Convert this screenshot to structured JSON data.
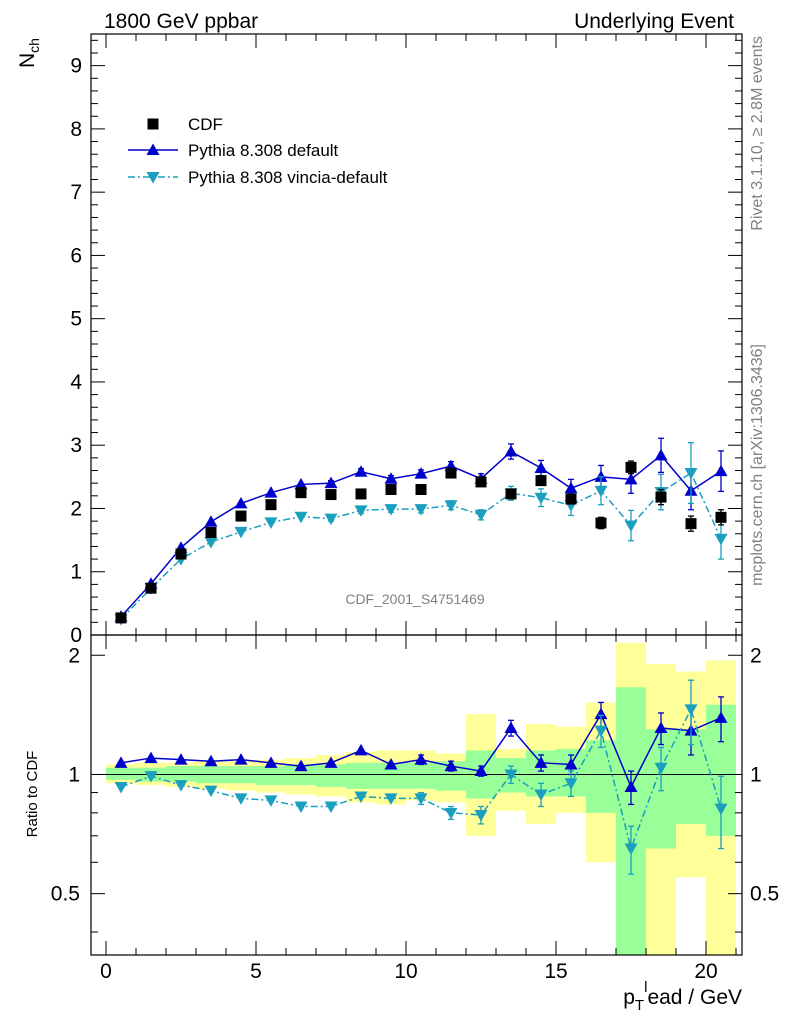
{
  "header": {
    "left": "1800 GeV ppbar",
    "right": "Underlying Event"
  },
  "side_text": {
    "rivet": "Rivet 3.1.10, ≥ 2.8M events",
    "mcplots": "mcplots.cern.ch [arXiv:1306.3436]"
  },
  "analysis_label": "CDF_2001_S4751469",
  "colors": {
    "cdf": "#000000",
    "default": "#0000cc",
    "vincia": "#1a9fbf",
    "band_outer": "#ffff99",
    "band_inner": "#99ff99"
  },
  "chart_data": [
    {
      "type": "scatter",
      "panel": "main",
      "ylabel_main": "N",
      "ylabel_sub": "ch",
      "xlim": [
        -0.5,
        21.2
      ],
      "ylim": [
        0,
        9.5
      ],
      "yticks": [
        0,
        1,
        2,
        3,
        4,
        5,
        6,
        7,
        8,
        9
      ],
      "legend_position": "top-left",
      "x": [
        0.5,
        1.5,
        2.5,
        3.5,
        4.5,
        5.5,
        6.5,
        7.5,
        8.5,
        9.5,
        10.5,
        11.5,
        12.5,
        13.5,
        14.5,
        15.5,
        16.5,
        17.5,
        18.5,
        19.5,
        20.5
      ],
      "series": [
        {
          "name": "CDF",
          "marker": "square",
          "values": [
            0.27,
            0.74,
            1.28,
            1.62,
            1.88,
            2.06,
            2.25,
            2.22,
            2.23,
            2.3,
            2.3,
            2.56,
            2.42,
            2.23,
            2.44,
            2.15,
            1.77,
            2.65,
            2.18,
            1.76,
            1.86
          ],
          "errors": [
            0.01,
            0.01,
            0.02,
            0.02,
            0.02,
            0.02,
            0.03,
            0.03,
            0.03,
            0.03,
            0.04,
            0.05,
            0.05,
            0.06,
            0.07,
            0.08,
            0.09,
            0.1,
            0.12,
            0.12,
            0.12
          ]
        },
        {
          "name": "Pythia 8.308 default",
          "marker": "triangle-up",
          "values": [
            0.29,
            0.81,
            1.38,
            1.79,
            2.08,
            2.25,
            2.38,
            2.4,
            2.58,
            2.47,
            2.55,
            2.67,
            2.47,
            2.9,
            2.64,
            2.32,
            2.5,
            2.46,
            2.84,
            2.28,
            2.59
          ],
          "errors": [
            0.01,
            0.01,
            0.01,
            0.02,
            0.02,
            0.03,
            0.03,
            0.04,
            0.05,
            0.05,
            0.06,
            0.07,
            0.08,
            0.12,
            0.12,
            0.14,
            0.18,
            0.22,
            0.27,
            0.3,
            0.32
          ]
        },
        {
          "name": "Pythia 8.308 vincia-default",
          "marker": "triangle-down",
          "values": [
            0.25,
            0.74,
            1.2,
            1.47,
            1.63,
            1.78,
            1.87,
            1.84,
            1.97,
            1.99,
            1.99,
            2.05,
            1.9,
            2.24,
            2.17,
            2.05,
            2.28,
            1.73,
            2.26,
            2.56,
            1.52
          ],
          "errors": [
            0.01,
            0.01,
            0.01,
            0.02,
            0.02,
            0.03,
            0.03,
            0.04,
            0.05,
            0.05,
            0.06,
            0.07,
            0.08,
            0.11,
            0.14,
            0.16,
            0.22,
            0.24,
            0.28,
            0.48,
            0.32
          ]
        }
      ]
    },
    {
      "type": "scatter",
      "panel": "ratio",
      "ylabel": "Ratio to CDF",
      "xlabel": "p_T^lead / GeV",
      "xlabel_p": "p",
      "xlabel_sub": "T",
      "xlabel_sup": "l",
      "xlabel_rest": "ead / GeV",
      "xlim": [
        -0.5,
        21.2
      ],
      "ylim": [
        0.35,
        2.25
      ],
      "yticks": [
        0.5,
        1,
        2
      ],
      "ytick_labels": [
        "0.5",
        "1",
        "2"
      ],
      "xticks": [
        0,
        5,
        10,
        15,
        20
      ],
      "xtick_labels": [
        "0",
        "5",
        "10",
        "15",
        "20"
      ],
      "x": [
        0.5,
        1.5,
        2.5,
        3.5,
        4.5,
        5.5,
        6.5,
        7.5,
        8.5,
        9.5,
        10.5,
        11.5,
        12.5,
        13.5,
        14.5,
        15.5,
        16.5,
        17.5,
        18.5,
        19.5,
        20.5
      ],
      "band_outer": [
        [
          0.95,
          1.06
        ],
        [
          0.94,
          1.07
        ],
        [
          0.93,
          1.07
        ],
        [
          0.92,
          1.08
        ],
        [
          0.91,
          1.08
        ],
        [
          0.9,
          1.09
        ],
        [
          0.89,
          1.1
        ],
        [
          0.88,
          1.12
        ],
        [
          0.85,
          1.14
        ],
        [
          0.84,
          1.15
        ],
        [
          0.86,
          1.15
        ],
        [
          0.85,
          1.13
        ],
        [
          0.7,
          1.42
        ],
        [
          0.81,
          1.16
        ],
        [
          0.75,
          1.34
        ],
        [
          0.8,
          1.32
        ],
        [
          0.6,
          1.52
        ],
        [
          0.38,
          2.15
        ],
        [
          0.35,
          1.9
        ],
        [
          0.55,
          1.82
        ],
        [
          0.35,
          1.94
        ]
      ],
      "band_inner": [
        [
          0.97,
          1.04
        ],
        [
          0.96,
          1.04
        ],
        [
          0.96,
          1.05
        ],
        [
          0.95,
          1.05
        ],
        [
          0.95,
          1.05
        ],
        [
          0.94,
          1.05
        ],
        [
          0.94,
          1.06
        ],
        [
          0.93,
          1.06
        ],
        [
          0.92,
          1.07
        ],
        [
          0.92,
          1.07
        ],
        [
          0.92,
          1.07
        ],
        [
          0.91,
          1.08
        ],
        [
          0.87,
          1.15
        ],
        [
          0.9,
          1.1
        ],
        [
          0.88,
          1.15
        ],
        [
          0.88,
          1.16
        ],
        [
          0.8,
          1.22
        ],
        [
          0.35,
          1.66
        ],
        [
          0.65,
          1.3
        ],
        [
          0.75,
          1.3
        ],
        [
          0.7,
          1.5
        ]
      ],
      "series": [
        {
          "name": "Pythia 8.308 default",
          "values": [
            1.07,
            1.1,
            1.09,
            1.08,
            1.09,
            1.07,
            1.05,
            1.07,
            1.15,
            1.06,
            1.09,
            1.05,
            1.02,
            1.31,
            1.07,
            1.06,
            1.42,
            0.93,
            1.31,
            1.29,
            1.39
          ],
          "errors": [
            0.01,
            0.01,
            0.01,
            0.01,
            0.01,
            0.01,
            0.01,
            0.02,
            0.02,
            0.02,
            0.03,
            0.03,
            0.03,
            0.06,
            0.05,
            0.06,
            0.1,
            0.09,
            0.12,
            0.17,
            0.18
          ]
        },
        {
          "name": "Pythia 8.308 vincia-default",
          "values": [
            0.93,
            0.99,
            0.94,
            0.91,
            0.87,
            0.86,
            0.83,
            0.83,
            0.88,
            0.87,
            0.87,
            0.8,
            0.79,
            1.0,
            0.89,
            0.95,
            1.29,
            0.65,
            1.04,
            1.46,
            0.82
          ],
          "errors": [
            0.01,
            0.01,
            0.01,
            0.01,
            0.01,
            0.01,
            0.01,
            0.02,
            0.02,
            0.02,
            0.03,
            0.03,
            0.04,
            0.05,
            0.06,
            0.07,
            0.12,
            0.09,
            0.13,
            0.27,
            0.17
          ]
        }
      ]
    }
  ]
}
